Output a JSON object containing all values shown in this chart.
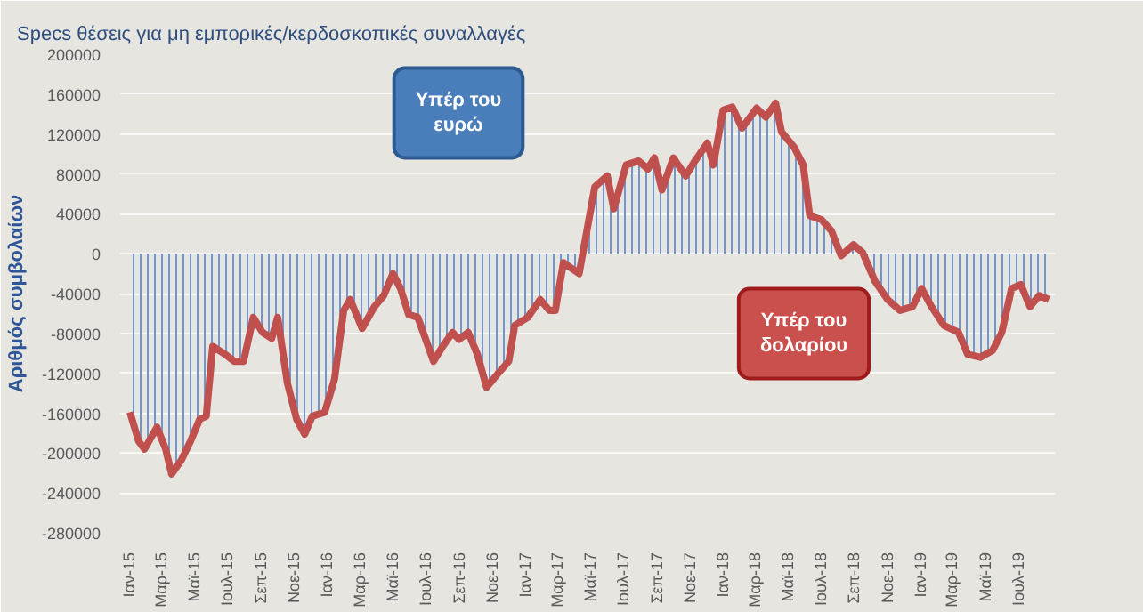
{
  "chart_data": {
    "type": "area",
    "title": "Specs θέσεις για μη εμπορικές/κερδοσκοπικές συναλλαγές",
    "ylabel": "Αριθμός συμβολαίων",
    "annotations": [
      "Υπέρ του ευρώ",
      "Υπέρ του δολαρίου"
    ],
    "x": [
      "2015-01-02",
      "2015-01-18",
      "2015-01-29",
      "2015-02-21",
      "2015-03-09",
      "2015-03-20",
      "2015-04-07",
      "2015-04-24",
      "2015-05-11",
      "2015-05-23",
      "2015-06-04",
      "2015-06-27",
      "2015-07-14",
      "2015-07-31",
      "2015-08-18",
      "2015-09-04",
      "2015-09-21",
      "2015-10-02",
      "2015-10-20",
      "2015-11-06",
      "2015-11-21",
      "2015-12-05",
      "2015-12-28",
      "2016-01-15",
      "2016-02-01",
      "2016-02-13",
      "2016-03-06",
      "2016-03-29",
      "2016-04-15",
      "2016-05-02",
      "2016-05-16",
      "2016-05-31",
      "2016-06-17",
      "2016-07-16",
      "2016-08-02",
      "2016-08-20",
      "2016-09-01",
      "2016-09-18",
      "2016-10-05",
      "2016-10-22",
      "2016-11-14",
      "2016-12-02",
      "2016-12-13",
      "2017-01-06",
      "2017-01-29",
      "2017-02-15",
      "2017-02-26",
      "2017-03-13",
      "2017-04-11",
      "2017-05-10",
      "2017-06-02",
      "2017-06-14",
      "2017-07-07",
      "2017-07-30",
      "2017-08-16",
      "2017-08-28",
      "2017-09-11",
      "2017-10-02",
      "2017-10-25",
      "2017-11-11",
      "2017-12-04",
      "2017-12-15",
      "2018-01-02",
      "2018-01-19",
      "2018-02-06",
      "2018-03-05",
      "2018-03-22",
      "2018-04-09",
      "2018-04-20",
      "2018-05-13",
      "2018-05-30",
      "2018-06-11",
      "2018-07-03",
      "2018-07-21",
      "2018-08-08",
      "2018-08-31",
      "2018-09-17",
      "2018-10-10",
      "2018-11-02",
      "2018-11-25",
      "2018-12-18",
      "2019-01-04",
      "2019-01-22",
      "2019-02-14",
      "2019-03-13",
      "2019-03-30",
      "2019-04-22",
      "2019-05-15",
      "2019-06-01",
      "2019-06-19",
      "2019-07-06",
      "2019-07-23",
      "2019-08-09",
      "2019-08-27"
    ],
    "series": [
      {
        "color": "#c0504d",
        "values": [
          -159000,
          -188000,
          -196000,
          -174000,
          -196000,
          -221000,
          -207000,
          -188000,
          -166000,
          -163000,
          -93000,
          -101000,
          -108000,
          -108000,
          -64000,
          -79000,
          -85000,
          -64000,
          -130000,
          -166000,
          -181000,
          -163000,
          -159000,
          -126000,
          -57000,
          -46000,
          -75000,
          -53000,
          -42000,
          -20000,
          -35000,
          -61000,
          -64000,
          -108000,
          -93000,
          -79000,
          -86000,
          -79000,
          -101000,
          -134000,
          -119000,
          -108000,
          -72000,
          -64000,
          -46000,
          -57000,
          -57000,
          -9000,
          -20000,
          67000,
          78000,
          45000,
          89000,
          93000,
          85000,
          96000,
          64000,
          96000,
          78000,
          93000,
          111000,
          89000,
          144000,
          147000,
          126000,
          146000,
          137000,
          151000,
          122000,
          107000,
          89000,
          38000,
          34000,
          23000,
          -2000,
          9000,
          1000,
          -28000,
          -46000,
          -57000,
          -53000,
          -35000,
          -53000,
          -72000,
          -79000,
          -101000,
          -104000,
          -97000,
          -79000,
          -35000,
          -31000,
          -53000,
          -42000,
          -46000
        ]
      }
    ],
    "xlim": [
      "2014-12-15",
      "2019-09-07"
    ],
    "xticks": [
      {
        "value": "2015-01-01",
        "label": "Ιαν-15"
      },
      {
        "value": "2015-03-01",
        "label": "Μαρ-15"
      },
      {
        "value": "2015-05-01",
        "label": "Μαϊ-15"
      },
      {
        "value": "2015-07-01",
        "label": "Ιουλ-15"
      },
      {
        "value": "2015-09-01",
        "label": "Σεπ-15"
      },
      {
        "value": "2015-11-01",
        "label": "Νοε-15"
      },
      {
        "value": "2016-01-01",
        "label": "Ιαν-16"
      },
      {
        "value": "2016-03-01",
        "label": "Μαρ-16"
      },
      {
        "value": "2016-05-01",
        "label": "Μαϊ-16"
      },
      {
        "value": "2016-07-01",
        "label": "Ιουλ-16"
      },
      {
        "value": "2016-09-01",
        "label": "Σεπ-16"
      },
      {
        "value": "2016-11-01",
        "label": "Νοε-16"
      },
      {
        "value": "2017-01-01",
        "label": "Ιαν-17"
      },
      {
        "value": "2017-03-01",
        "label": "Μαρ-17"
      },
      {
        "value": "2017-05-01",
        "label": "Μαϊ-17"
      },
      {
        "value": "2017-07-01",
        "label": "Ιουλ-17"
      },
      {
        "value": "2017-09-01",
        "label": "Σεπ-17"
      },
      {
        "value": "2017-11-01",
        "label": "Νοε-17"
      },
      {
        "value": "2018-01-01",
        "label": "Ιαν-18"
      },
      {
        "value": "2018-03-01",
        "label": "Μαρ-18"
      },
      {
        "value": "2018-05-01",
        "label": "Μαϊ-18"
      },
      {
        "value": "2018-07-01",
        "label": "Ιουλ-18"
      },
      {
        "value": "2018-09-01",
        "label": "Σεπ-18"
      },
      {
        "value": "2018-11-01",
        "label": "Νοε-18"
      },
      {
        "value": "2019-01-01",
        "label": "Ιαν-19"
      },
      {
        "value": "2019-03-01",
        "label": "Μαρ-19"
      },
      {
        "value": "2019-05-01",
        "label": "Μαϊ-19"
      },
      {
        "value": "2019-07-01",
        "label": "Ιουλ-19"
      }
    ],
    "ylim": [
      -280000,
      200000
    ],
    "yticks": [
      -280000,
      -240000,
      -200000,
      -160000,
      -120000,
      -80000,
      -40000,
      0,
      40000,
      80000,
      120000,
      160000,
      200000
    ],
    "grid": "y",
    "line_style": "solid"
  }
}
